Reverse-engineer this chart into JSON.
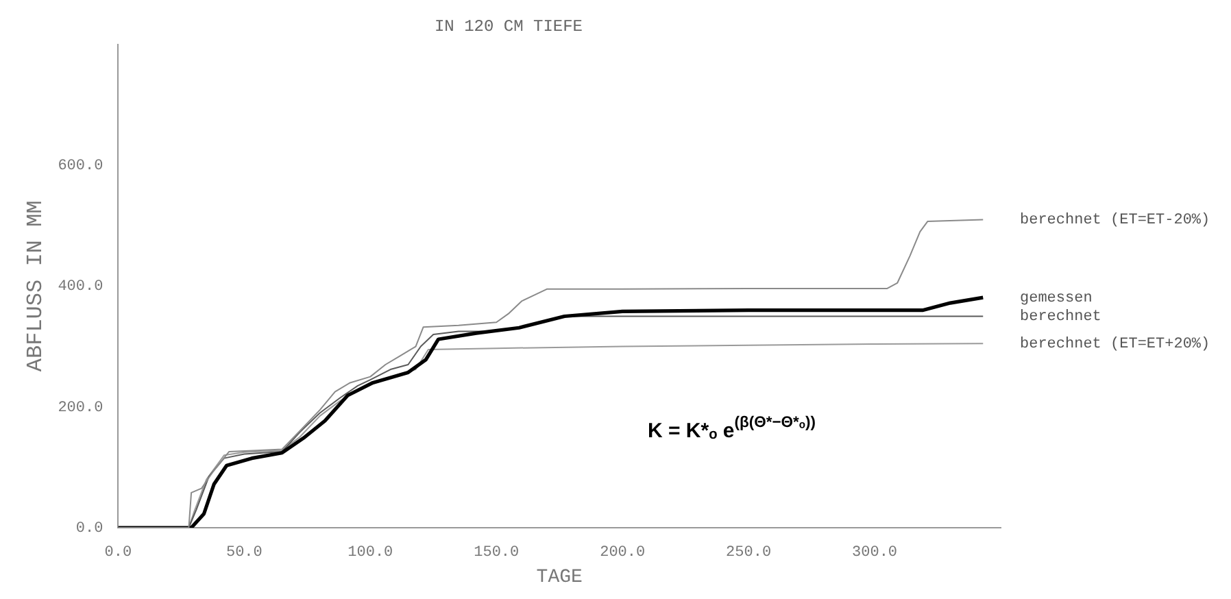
{
  "chart_data": {
    "type": "line",
    "title": "IN 120 CM TIEFE",
    "xlabel": "TAGE",
    "ylabel": "ABFLUSS IN MM",
    "xlim": [
      0,
      350
    ],
    "ylim": [
      0,
      800
    ],
    "xticks": [
      {
        "value": 0,
        "label": "0.0"
      },
      {
        "value": 50,
        "label": "50.0"
      },
      {
        "value": 100,
        "label": "100.0"
      },
      {
        "value": 150,
        "label": "150.0"
      },
      {
        "value": 200,
        "label": "200.0"
      },
      {
        "value": 250,
        "label": "250.0"
      },
      {
        "value": 300,
        "label": "300.0"
      }
    ],
    "yticks": [
      {
        "value": 0,
        "label": "0.0"
      },
      {
        "value": 200,
        "label": "200.0"
      },
      {
        "value": 400,
        "label": "400.0"
      },
      {
        "value": 600,
        "label": "600.0"
      }
    ],
    "grid": false,
    "legend": false,
    "marker": "none",
    "line_style": "solid",
    "annotations": [
      {
        "text": "K = K*ₒ e$^{(β(Θ*−Θ*ₒ))}$"
      }
    ],
    "series": [
      {
        "name": "berechnet (ET=ET-20%)",
        "color": "#8a8a8a",
        "x": [
          0,
          28,
          29,
          33,
          38,
          44,
          55,
          65,
          72,
          80,
          86,
          92,
          100,
          106,
          112,
          118,
          121,
          135,
          150,
          155,
          160,
          165,
          170,
          200,
          250,
          305,
          309,
          314,
          318,
          321,
          343
        ],
        "values": [
          0,
          0,
          58,
          65,
          95,
          126,
          128,
          130,
          160,
          195,
          225,
          240,
          250,
          270,
          285,
          300,
          332,
          335,
          340,
          355,
          375,
          385,
          395,
          395,
          396,
          396,
          405,
          450,
          490,
          507,
          510
        ]
      },
      {
        "name": "gemessen",
        "color": "#000000",
        "x": [
          0,
          29,
          34,
          38,
          43,
          53,
          65,
          74,
          82,
          91,
          101,
          115,
          122,
          127,
          142,
          159,
          177,
          200,
          250,
          300,
          319,
          330,
          343
        ],
        "values": [
          0,
          0,
          23,
          72,
          103,
          115,
          124,
          150,
          177,
          219,
          240,
          257,
          278,
          312,
          322,
          331,
          350,
          358,
          360,
          360,
          360,
          372,
          381
        ]
      },
      {
        "name": "berechnet",
        "color": "#5a5a5a",
        "x": [
          0,
          28,
          31,
          36,
          42,
          50,
          65,
          72,
          80,
          88,
          95,
          100,
          108,
          115,
          120,
          125,
          135,
          145,
          155,
          165,
          178,
          200,
          250,
          300,
          343
        ],
        "values": [
          0,
          0,
          30,
          85,
          115,
          122,
          126,
          158,
          190,
          215,
          235,
          245,
          262,
          270,
          300,
          320,
          325,
          325,
          328,
          338,
          350,
          350,
          350,
          350,
          350
        ]
      },
      {
        "name": "berechnet (ET=ET+20%)",
        "color": "#9a9a9a",
        "x": [
          0,
          28,
          30,
          35,
          42,
          50,
          65,
          72,
          80,
          88,
          96,
          105,
          112,
          118,
          123,
          150,
          200,
          250,
          300,
          343
        ],
        "values": [
          0,
          0,
          25,
          80,
          120,
          125,
          128,
          150,
          185,
          210,
          230,
          245,
          255,
          262,
          295,
          297,
          300,
          302,
          304,
          305
        ]
      }
    ]
  }
}
